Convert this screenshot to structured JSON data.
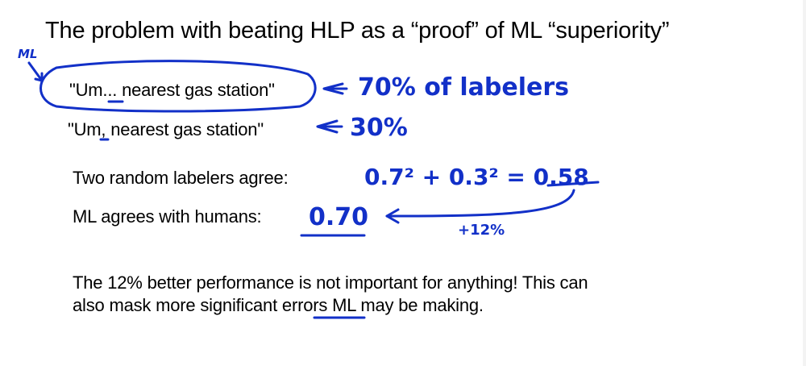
{
  "slide": {
    "title": "The problem with beating HLP as a “proof” of ML “superiority”",
    "transcripts": [
      {
        "text": "\"Um... nearest gas station\"",
        "annotation": "70% of labelers"
      },
      {
        "text": "\"Um, nearest gas station\"",
        "annotation": "30%"
      }
    ],
    "rows": [
      {
        "label": "Two random labelers agree:",
        "annotation": "0.7² + 0.3² = 0.58"
      },
      {
        "label": "ML agrees with humans:",
        "annotation": "0.70"
      }
    ],
    "ml_note": "ML",
    "improvement_note": "+12%",
    "conclusion_line1": "The 12% better performance is not important for anything! This can",
    "conclusion_line2": "also mask more significant errors ML may be making."
  },
  "ink_color": "#1230c8"
}
